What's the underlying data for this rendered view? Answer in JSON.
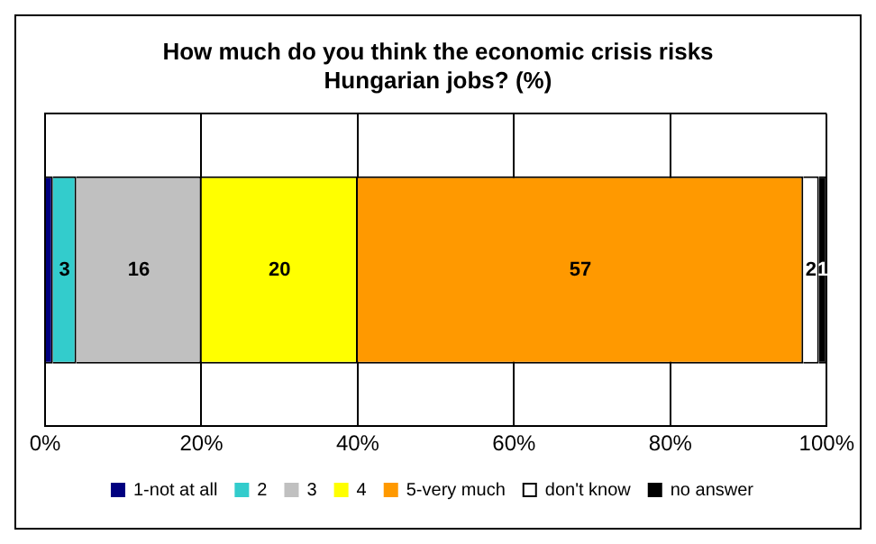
{
  "chart_data": {
    "type": "bar",
    "orientation": "horizontal",
    "stacked": true,
    "title": "How much do you think the economic crisis risks Hungarian jobs?   (%)",
    "categories": [
      null
    ],
    "series": [
      {
        "name": "1-not at all",
        "color": "#000080",
        "values": [
          1
        ],
        "value_labels": [
          null
        ]
      },
      {
        "name": "2",
        "color": "#33cccc",
        "values": [
          3
        ],
        "value_labels": [
          "3"
        ]
      },
      {
        "name": "3",
        "color": "#c0c0c0",
        "values": [
          16
        ],
        "value_labels": [
          "16"
        ]
      },
      {
        "name": "4",
        "color": "#ffff00",
        "values": [
          20
        ],
        "value_labels": [
          "20"
        ]
      },
      {
        "name": "5-very much",
        "color": "#ff9900",
        "values": [
          57
        ],
        "value_labels": [
          "57"
        ]
      },
      {
        "name": "don't know",
        "color": "#ffffff",
        "values": [
          2
        ],
        "value_labels": [
          "2"
        ]
      },
      {
        "name": "no answer",
        "color": "#000000",
        "values": [
          1
        ],
        "value_labels": [
          "1"
        ]
      }
    ],
    "xlim": [
      0,
      100
    ],
    "xticks": [
      {
        "value": 0,
        "label": "0%"
      },
      {
        "value": 20,
        "label": "20%"
      },
      {
        "value": 40,
        "label": "40%"
      },
      {
        "value": 60,
        "label": "60%"
      },
      {
        "value": 80,
        "label": "80%"
      },
      {
        "value": 100,
        "label": "100%"
      }
    ],
    "grid": "x",
    "legend": "bottom"
  }
}
